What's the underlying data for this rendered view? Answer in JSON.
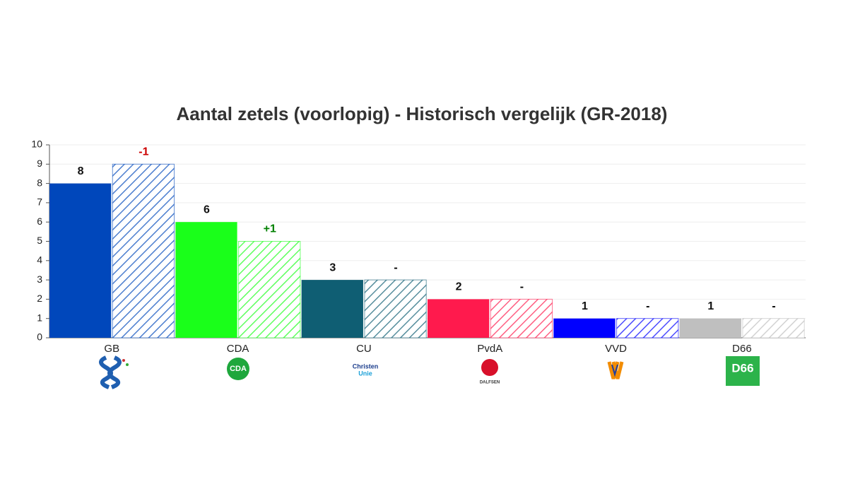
{
  "chart_data": {
    "type": "bar",
    "title": "Aantal zetels (voorlopig) - Historisch vergelijk (GR-2018)",
    "categories": [
      "GB",
      "CDA",
      "CU",
      "PvdA",
      "VVD",
      "D66"
    ],
    "colors": [
      "#0047bb",
      "#1aff1a",
      "#0f5e73",
      "#ff1a4d",
      "#0000ff",
      "#bfbfbf"
    ],
    "series": [
      {
        "values": [
          8,
          6,
          3,
          2,
          1,
          1
        ]
      },
      {
        "values": [
          9,
          5,
          3,
          2,
          1,
          1
        ],
        "hatched": true,
        "change_labels": [
          "-1",
          "+1",
          "-",
          "-",
          "-",
          "-"
        ],
        "change_colors": [
          "#cc0000",
          "#008000",
          "#000000",
          "#000000",
          "#000000",
          "#000000"
        ]
      }
    ],
    "ylim": [
      0,
      10
    ],
    "yticks": [
      0,
      1,
      2,
      3,
      4,
      5,
      6,
      7,
      8,
      9,
      10
    ],
    "grid": true,
    "logo_texts": [
      "CDA",
      "Christen",
      "Unie",
      "DALFSEN",
      "D66"
    ]
  }
}
